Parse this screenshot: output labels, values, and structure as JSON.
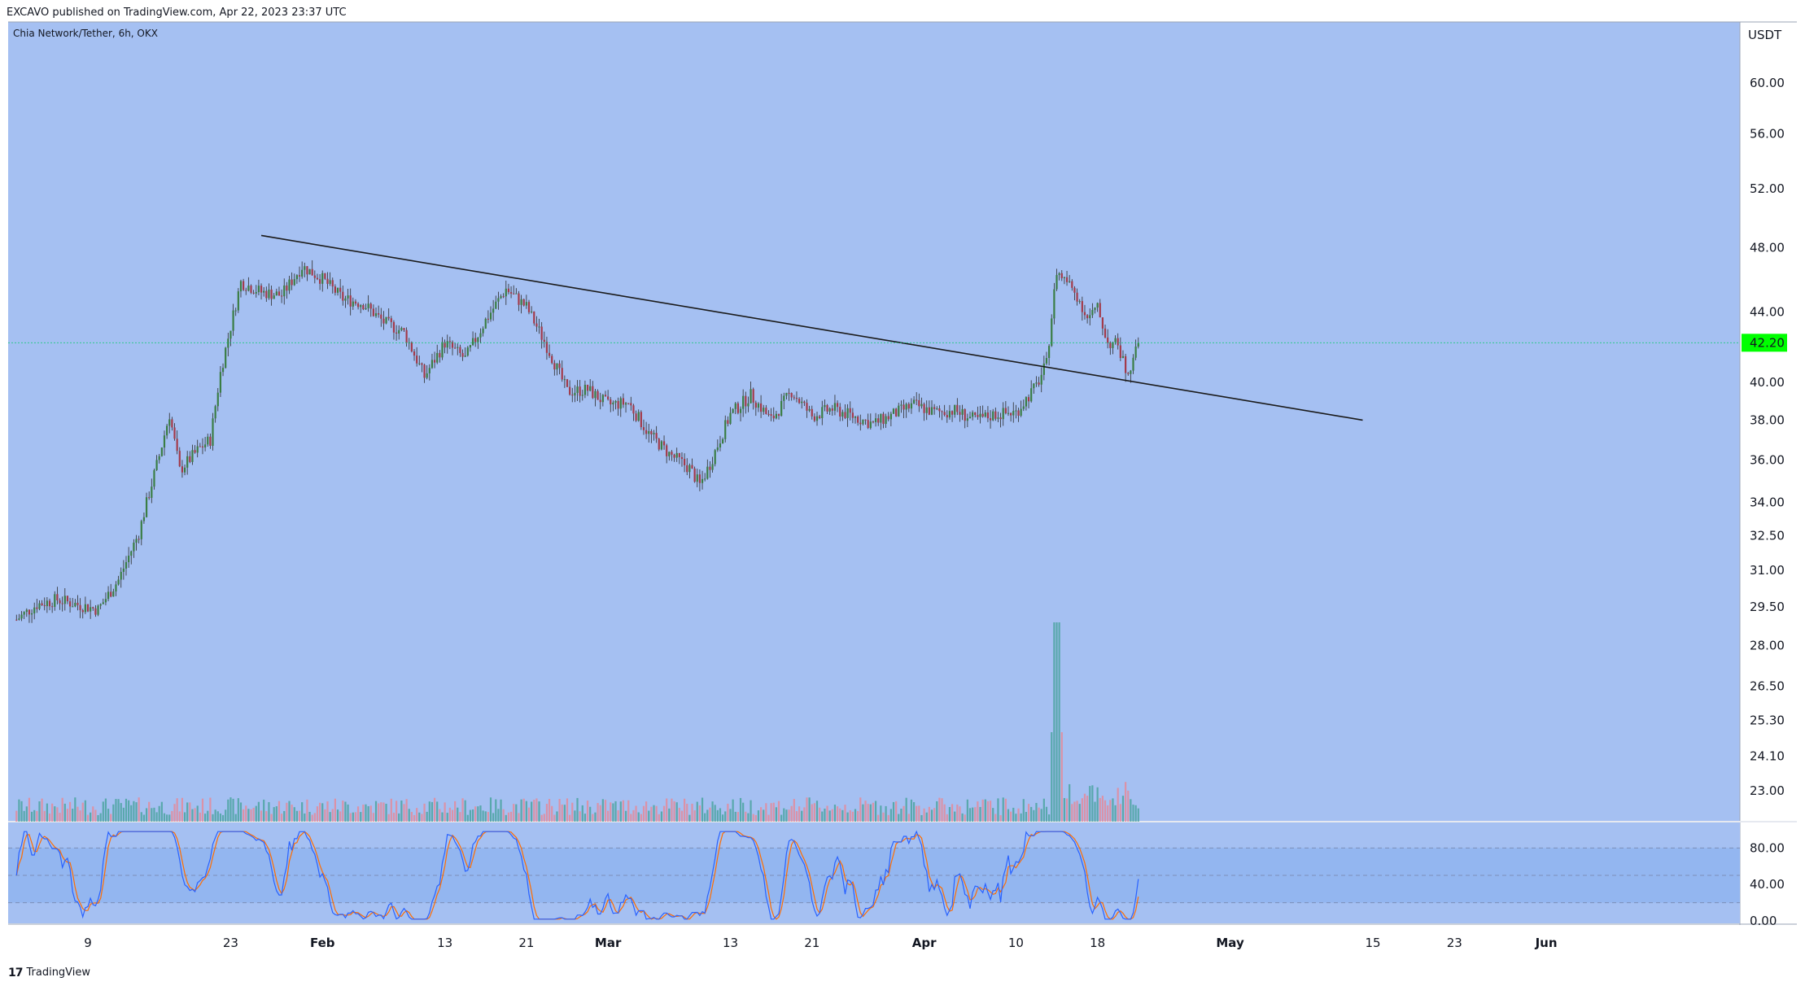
{
  "header": {
    "publish_text": "EXCAVO published on TradingView.com, Apr 22, 2023 23:37 UTC"
  },
  "footer": {
    "logo_mark": "17",
    "logo_text": "TradingView"
  },
  "chart_data": {
    "type": "candlestick",
    "symbol_label": "Chia Network/Tether, 6h, OKX",
    "currency_label": "USDT",
    "price_axis_ticks": [
      "60.00",
      "56.00",
      "52.00",
      "48.00",
      "44.00",
      "40.00",
      "38.00",
      "36.00",
      "34.00",
      "32.50",
      "31.00",
      "29.50",
      "28.00",
      "26.50",
      "25.30",
      "24.10",
      "23.00"
    ],
    "price_axis_values": [
      60,
      56,
      52,
      48,
      44,
      40,
      38,
      36,
      34,
      32.5,
      31,
      29.5,
      28,
      26.5,
      25.3,
      24.1,
      23
    ],
    "scale": "log",
    "last_price": {
      "label": "42.20",
      "value": 42.2,
      "color": "#00ff00"
    },
    "x_ticks": [
      {
        "label": "9",
        "date": "2023-01-09",
        "bold": false
      },
      {
        "label": "23",
        "date": "2023-01-23",
        "bold": false
      },
      {
        "label": "Feb",
        "date": "2023-02-01",
        "bold": true
      },
      {
        "label": "13",
        "date": "2023-02-13",
        "bold": false
      },
      {
        "label": "21",
        "date": "2023-02-21",
        "bold": false
      },
      {
        "label": "Mar",
        "date": "2023-03-01",
        "bold": true
      },
      {
        "label": "13",
        "date": "2023-03-13",
        "bold": false
      },
      {
        "label": "21",
        "date": "2023-03-21",
        "bold": false
      },
      {
        "label": "Apr",
        "date": "2023-04-01",
        "bold": true
      },
      {
        "label": "10",
        "date": "2023-04-10",
        "bold": false
      },
      {
        "label": "18",
        "date": "2023-04-18",
        "bold": false
      },
      {
        "label": "May",
        "date": "2023-05-01",
        "bold": true
      },
      {
        "label": "15",
        "date": "2023-05-15",
        "bold": false
      },
      {
        "label": "23",
        "date": "2023-05-23",
        "bold": false
      },
      {
        "label": "Jun",
        "date": "2023-06-01",
        "bold": true
      }
    ],
    "series": [
      {
        "name": "price",
        "points": [
          {
            "date": "2023-01-02",
            "close": 29.0
          },
          {
            "date": "2023-01-04",
            "close": 29.6
          },
          {
            "date": "2023-01-06",
            "close": 29.8
          },
          {
            "date": "2023-01-08",
            "close": 29.6
          },
          {
            "date": "2023-01-10",
            "close": 29.4
          },
          {
            "date": "2023-01-12",
            "close": 30.6
          },
          {
            "date": "2023-01-14",
            "close": 32.6
          },
          {
            "date": "2023-01-16",
            "close": 36.2
          },
          {
            "date": "2023-01-17",
            "close": 38.3
          },
          {
            "date": "2023-01-18",
            "close": 35.5
          },
          {
            "date": "2023-01-20",
            "close": 36.6
          },
          {
            "date": "2023-01-21",
            "close": 37.0
          },
          {
            "date": "2023-01-22",
            "close": 40.5
          },
          {
            "date": "2023-01-24",
            "close": 45.8
          },
          {
            "date": "2023-01-26",
            "close": 45.2
          },
          {
            "date": "2023-01-28",
            "close": 45.0
          },
          {
            "date": "2023-01-30",
            "close": 46.8
          },
          {
            "date": "2023-02-01",
            "close": 46.0
          },
          {
            "date": "2023-02-03",
            "close": 44.8
          },
          {
            "date": "2023-02-05",
            "close": 44.5
          },
          {
            "date": "2023-02-07",
            "close": 43.4
          },
          {
            "date": "2023-02-09",
            "close": 42.8
          },
          {
            "date": "2023-02-11",
            "close": 40.3
          },
          {
            "date": "2023-02-13",
            "close": 42.2
          },
          {
            "date": "2023-02-15",
            "close": 41.3
          },
          {
            "date": "2023-02-17",
            "close": 43.5
          },
          {
            "date": "2023-02-19",
            "close": 45.4
          },
          {
            "date": "2023-02-21",
            "close": 44.3
          },
          {
            "date": "2023-02-23",
            "close": 42.0
          },
          {
            "date": "2023-02-25",
            "close": 39.5
          },
          {
            "date": "2023-02-27",
            "close": 39.6
          },
          {
            "date": "2023-03-01",
            "close": 38.8
          },
          {
            "date": "2023-03-03",
            "close": 38.9
          },
          {
            "date": "2023-03-05",
            "close": 37.3
          },
          {
            "date": "2023-03-07",
            "close": 36.3
          },
          {
            "date": "2023-03-09",
            "close": 35.6
          },
          {
            "date": "2023-03-10",
            "close": 34.8
          },
          {
            "date": "2023-03-11",
            "close": 35.8
          },
          {
            "date": "2023-03-13",
            "close": 38.3
          },
          {
            "date": "2023-03-15",
            "close": 39.3
          },
          {
            "date": "2023-03-17",
            "close": 38.0
          },
          {
            "date": "2023-03-19",
            "close": 39.5
          },
          {
            "date": "2023-03-21",
            "close": 38.2
          },
          {
            "date": "2023-03-23",
            "close": 38.6
          },
          {
            "date": "2023-03-25",
            "close": 38.2
          },
          {
            "date": "2023-03-27",
            "close": 37.8
          },
          {
            "date": "2023-03-29",
            "close": 38.3
          },
          {
            "date": "2023-03-31",
            "close": 38.8
          },
          {
            "date": "2023-04-02",
            "close": 38.4
          },
          {
            "date": "2023-04-04",
            "close": 38.5
          },
          {
            "date": "2023-04-06",
            "close": 38.0
          },
          {
            "date": "2023-04-08",
            "close": 38.3
          },
          {
            "date": "2023-04-10",
            "close": 38.4
          },
          {
            "date": "2023-04-12",
            "close": 39.8
          },
          {
            "date": "2023-04-13",
            "close": 41.0
          },
          {
            "date": "2023-04-14",
            "close": 46.5
          },
          {
            "date": "2023-04-15",
            "close": 45.8
          },
          {
            "date": "2023-04-16",
            "close": 45.0
          },
          {
            "date": "2023-04-17",
            "close": 43.6
          },
          {
            "date": "2023-04-18",
            "close": 44.2
          },
          {
            "date": "2023-04-19",
            "close": 42.2
          },
          {
            "date": "2023-04-20",
            "close": 42.1
          },
          {
            "date": "2023-04-21",
            "close": 40.2
          },
          {
            "date": "2023-04-22",
            "close": 42.2
          }
        ]
      }
    ],
    "trendline": {
      "start": {
        "date": "2023-01-26",
        "price": 48.8
      },
      "end": {
        "date": "2023-05-14",
        "price": 38.0
      }
    },
    "volume": {
      "peak_date": "2023-04-14"
    },
    "stochastic_rsi": {
      "axis_ticks": [
        "80.00",
        "40.00",
        "0.00"
      ],
      "axis_values": [
        80,
        40,
        0
      ],
      "bands": [
        80,
        50,
        20
      ],
      "k_color": "#2962ff",
      "d_color": "#ff6d00"
    },
    "colors": {
      "background": "#a5c0f2",
      "rsi_band": "#93b6f0",
      "up_candle": "#3a7d44",
      "down_candle": "#a33a4a",
      "trendline": "#1a1a1a",
      "volume_up": "#4aa3a0",
      "volume_down": "#e48a9a"
    }
  }
}
